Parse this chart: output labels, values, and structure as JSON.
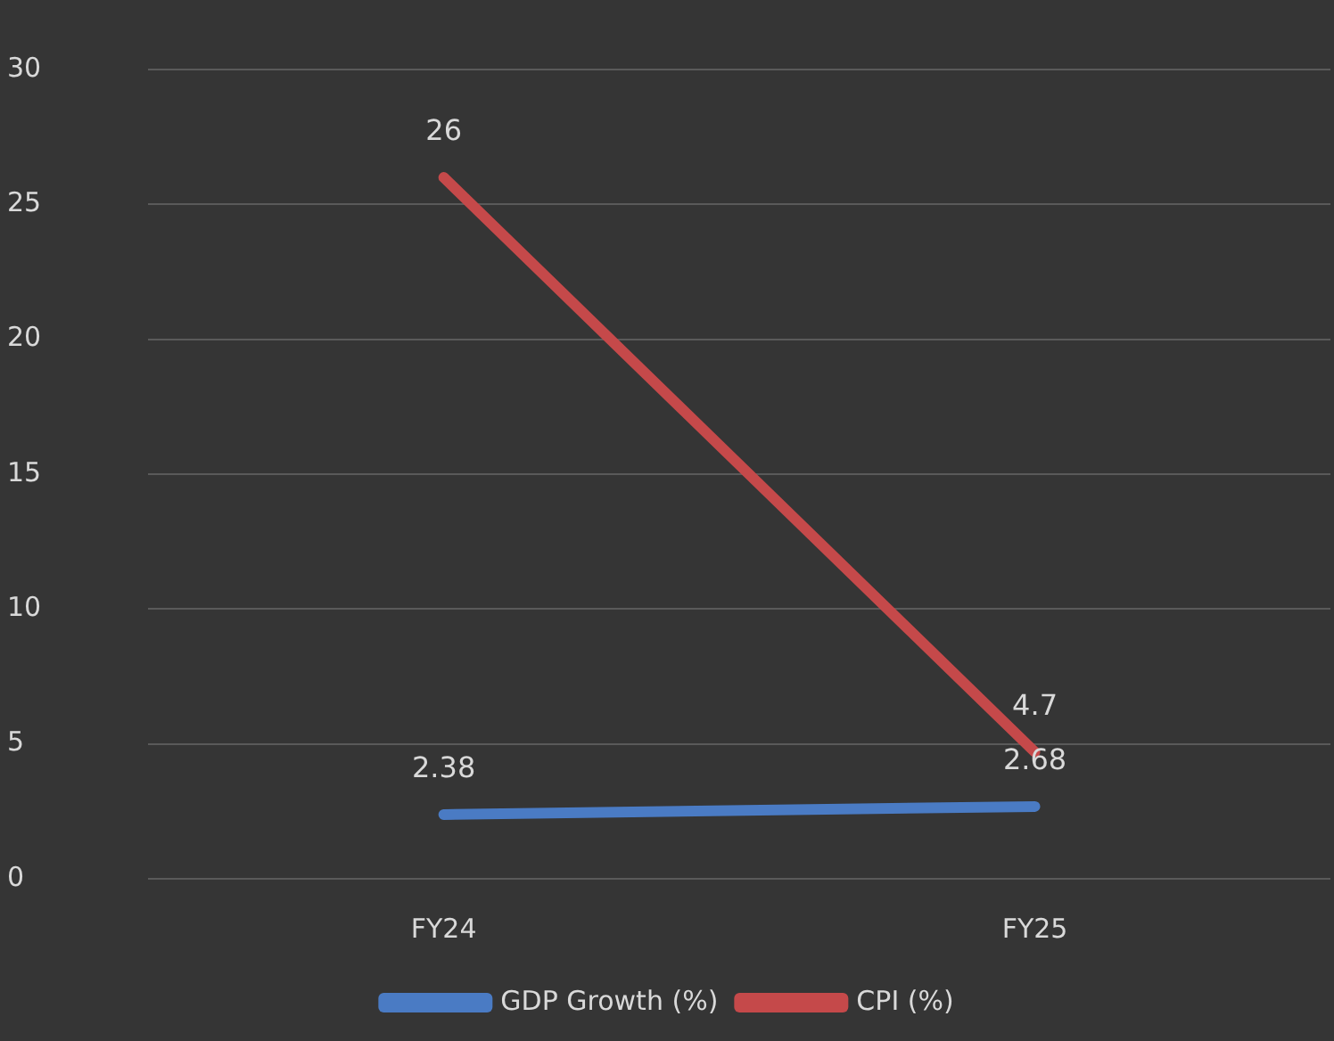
{
  "chart_data": {
    "type": "line",
    "categories": [
      "FY24",
      "FY25"
    ],
    "series": [
      {
        "name": "GDP Growth (%)",
        "color": "#4a7bc4",
        "values": [
          2.38,
          2.68
        ]
      },
      {
        "name": "CPI (%)",
        "color": "#c5494a",
        "values": [
          26,
          4.7
        ]
      }
    ],
    "ylim": [
      0,
      30
    ],
    "yticks": [
      0,
      5,
      10,
      15,
      20,
      25,
      30
    ],
    "grid": "y",
    "legend": "bottom",
    "marker": "none",
    "line_style": "solid",
    "data_labels": true
  }
}
